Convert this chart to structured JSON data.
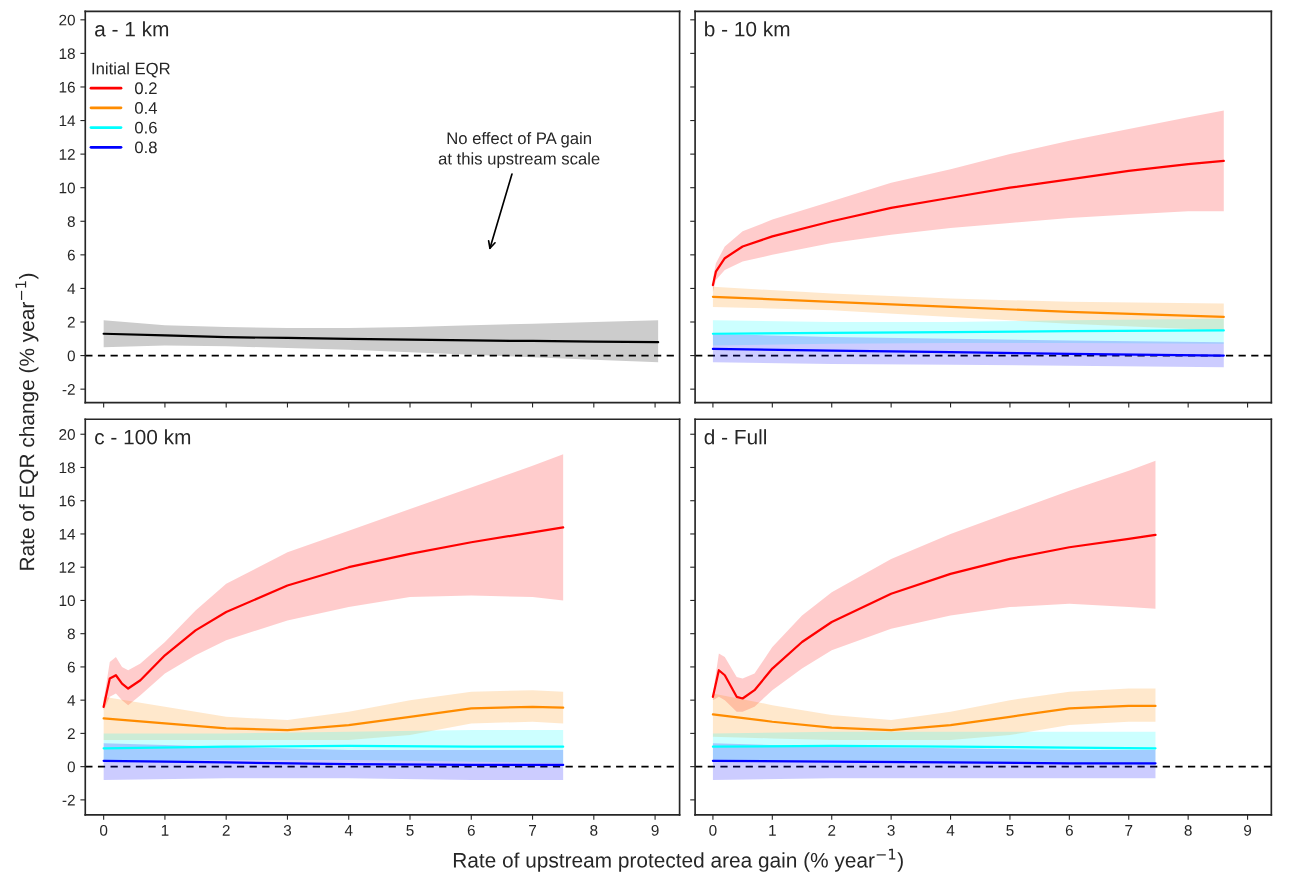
{
  "chart_data": [
    {
      "type": "line",
      "title": "a - 1 km",
      "ylabel": "Rate of EQR change (% year$^{−1}$)",
      "xlim": [
        -0.3,
        9.4
      ],
      "ylim": [
        -2.8,
        20.5
      ],
      "xticks": [
        0,
        1,
        2,
        3,
        4,
        5,
        6,
        7,
        8,
        9
      ],
      "yticks": [
        -2,
        0,
        2,
        4,
        6,
        8,
        10,
        12,
        14,
        16,
        18,
        20
      ],
      "tick_labels": "y",
      "annotations": [
        "No effect of PA gain\nat this upstream scale"
      ],
      "ref_lines": [
        {
          "axis": "y",
          "value": 0,
          "color": "#000000",
          "line_style": "dashed"
        }
      ],
      "series": [
        {
          "color": "#000000",
          "x": [
            0,
            1,
            2,
            3,
            4,
            5,
            6,
            7,
            8,
            9.05
          ],
          "values": [
            1.3,
            1.2,
            1.1,
            1.05,
            1.0,
            0.95,
            0.9,
            0.87,
            0.83,
            0.8
          ],
          "lower": [
            0.5,
            0.6,
            0.55,
            0.45,
            0.35,
            0.2,
            0.05,
            -0.1,
            -0.25,
            -0.4
          ],
          "upper": [
            2.1,
            1.8,
            1.7,
            1.65,
            1.65,
            1.7,
            1.8,
            1.9,
            2.0,
            2.1
          ]
        }
      ]
    },
    {
      "type": "line",
      "title": "b - 10 km",
      "legend_title": "Initial EQR",
      "legend": "left",
      "xlim": [
        -0.3,
        9.4
      ],
      "ylim": [
        -2.8,
        20.5
      ],
      "xticks": [
        0,
        1,
        2,
        3,
        4,
        5,
        6,
        7,
        8,
        9
      ],
      "yticks": [
        -2,
        0,
        2,
        4,
        6,
        8,
        10,
        12,
        14,
        16,
        18,
        20
      ],
      "tick_labels": false,
      "ref_lines": [
        {
          "axis": "y",
          "value": 0,
          "color": "#000000",
          "line_style": "dashed"
        }
      ],
      "series": [
        {
          "name": "0.2",
          "color": "#ff0000",
          "x": [
            0,
            0.05,
            0.2,
            0.5,
            1,
            2,
            3,
            4,
            5,
            6,
            7,
            8,
            8.6
          ],
          "values": [
            4.2,
            5.0,
            5.8,
            6.5,
            7.1,
            8.0,
            8.8,
            9.4,
            10.0,
            10.5,
            11.0,
            11.4,
            11.6
          ],
          "lower": [
            3.8,
            4.5,
            5.1,
            5.6,
            6.0,
            6.7,
            7.2,
            7.6,
            7.9,
            8.2,
            8.4,
            8.6,
            8.6
          ],
          "upper": [
            4.6,
            5.5,
            6.5,
            7.4,
            8.1,
            9.2,
            10.3,
            11.1,
            12.0,
            12.8,
            13.5,
            14.2,
            14.6
          ]
        },
        {
          "name": "0.4",
          "color": "#ff8c00",
          "x": [
            0,
            2,
            4,
            6,
            8.6
          ],
          "values": [
            3.5,
            3.2,
            2.9,
            2.6,
            2.3
          ],
          "lower": [
            2.9,
            2.7,
            2.3,
            1.9,
            1.5
          ],
          "upper": [
            4.1,
            3.7,
            3.4,
            3.2,
            3.1
          ]
        },
        {
          "name": "0.6",
          "color": "#00ffff",
          "x": [
            0,
            2,
            4,
            6,
            8.6
          ],
          "values": [
            1.3,
            1.35,
            1.4,
            1.45,
            1.5
          ],
          "lower": [
            0.6,
            0.7,
            0.75,
            0.75,
            0.7
          ],
          "upper": [
            2.1,
            2.0,
            2.0,
            2.1,
            2.2
          ]
        },
        {
          "name": "0.8",
          "color": "#0000ff",
          "x": [
            0,
            2,
            4,
            6,
            8.6
          ],
          "values": [
            0.4,
            0.3,
            0.2,
            0.1,
            0.0
          ],
          "lower": [
            -0.4,
            -0.5,
            -0.55,
            -0.6,
            -0.7
          ],
          "upper": [
            1.3,
            1.1,
            1.0,
            0.9,
            0.8
          ]
        }
      ]
    },
    {
      "type": "line",
      "title": "c - 100 km",
      "xlabel": "Rate of upstream protected area gain (% year$^{−1}$)",
      "xlim": [
        -0.3,
        9.4
      ],
      "ylim": [
        -2.9,
        20.9
      ],
      "xticks": [
        0,
        1,
        2,
        3,
        4,
        5,
        6,
        7,
        8,
        9
      ],
      "yticks": [
        -2,
        0,
        2,
        4,
        6,
        8,
        10,
        12,
        14,
        16,
        18,
        20
      ],
      "ref_lines": [
        {
          "axis": "y",
          "value": 0,
          "color": "#000000",
          "line_style": "dashed"
        }
      ],
      "series": [
        {
          "name": "0.2",
          "color": "#ff0000",
          "x": [
            0,
            0.1,
            0.2,
            0.3,
            0.4,
            0.6,
            1,
            1.5,
            2,
            3,
            4,
            5,
            6,
            7,
            7.5
          ],
          "values": [
            3.6,
            5.3,
            5.5,
            5.0,
            4.7,
            5.2,
            6.7,
            8.2,
            9.3,
            10.9,
            12.0,
            12.8,
            13.5,
            14.1,
            14.4
          ],
          "lower": [
            3.4,
            4.2,
            4.4,
            4.0,
            3.7,
            4.3,
            5.6,
            6.7,
            7.6,
            8.8,
            9.6,
            10.2,
            10.3,
            10.2,
            10.0
          ],
          "upper": [
            4.0,
            6.3,
            6.6,
            6.0,
            5.8,
            6.2,
            7.5,
            9.4,
            11.0,
            12.9,
            14.2,
            15.5,
            16.8,
            18.1,
            18.8
          ]
        },
        {
          "name": "0.4",
          "color": "#ff8c00",
          "x": [
            0,
            1,
            2,
            3,
            4,
            5,
            6,
            7,
            7.5
          ],
          "values": [
            2.9,
            2.6,
            2.3,
            2.2,
            2.5,
            3.0,
            3.5,
            3.6,
            3.55
          ],
          "lower": [
            1.6,
            1.6,
            1.6,
            1.6,
            1.6,
            1.9,
            2.6,
            2.7,
            2.6
          ],
          "upper": [
            4.2,
            3.6,
            3.0,
            2.8,
            3.3,
            4.0,
            4.5,
            4.6,
            4.5
          ]
        },
        {
          "name": "0.6",
          "color": "#00ffff",
          "x": [
            0,
            2,
            4,
            6,
            7.5
          ],
          "values": [
            1.1,
            1.2,
            1.25,
            1.2,
            1.2
          ],
          "lower": [
            0.3,
            0.4,
            0.4,
            0.3,
            0.2
          ],
          "upper": [
            2.0,
            2.0,
            2.1,
            2.2,
            2.2
          ]
        },
        {
          "name": "0.8",
          "color": "#0000ff",
          "x": [
            0,
            2,
            4,
            6,
            7.5
          ],
          "values": [
            0.35,
            0.25,
            0.15,
            0.1,
            0.1
          ],
          "lower": [
            -0.8,
            -0.7,
            -0.7,
            -0.8,
            -0.8
          ],
          "upper": [
            1.4,
            1.2,
            1.0,
            1.0,
            1.0
          ]
        }
      ]
    },
    {
      "type": "line",
      "title": "d - Full",
      "xlim": [
        -0.3,
        9.4
      ],
      "ylim": [
        -2.9,
        20.9
      ],
      "xticks": [
        0,
        1,
        2,
        3,
        4,
        5,
        6,
        7,
        8,
        9
      ],
      "yticks": [
        -2,
        0,
        2,
        4,
        6,
        8,
        10,
        12,
        14,
        16,
        18,
        20
      ],
      "tick_labels": "x",
      "ref_lines": [
        {
          "axis": "y",
          "value": 0,
          "color": "#000000",
          "line_style": "dashed"
        }
      ],
      "series": [
        {
          "name": "0.2",
          "color": "#ff0000",
          "x": [
            0,
            0.1,
            0.2,
            0.4,
            0.5,
            0.7,
            1,
            1.5,
            2,
            3,
            4,
            5,
            6,
            7,
            7.45
          ],
          "values": [
            4.2,
            5.8,
            5.5,
            4.2,
            4.1,
            4.6,
            5.9,
            7.5,
            8.7,
            10.4,
            11.6,
            12.5,
            13.2,
            13.7,
            13.95
          ],
          "lower": [
            4.0,
            4.2,
            4.0,
            3.3,
            3.3,
            3.6,
            4.6,
            5.9,
            7.0,
            8.3,
            9.1,
            9.6,
            9.8,
            9.6,
            9.5
          ],
          "upper": [
            4.4,
            6.8,
            6.6,
            5.4,
            5.3,
            5.6,
            7.2,
            9.1,
            10.5,
            12.5,
            14.0,
            15.3,
            16.6,
            17.8,
            18.4
          ]
        },
        {
          "name": "0.4",
          "color": "#ff8c00",
          "x": [
            0,
            1,
            2,
            3,
            4,
            5,
            6,
            7,
            7.45
          ],
          "values": [
            3.15,
            2.7,
            2.35,
            2.2,
            2.5,
            3.0,
            3.5,
            3.65,
            3.65
          ],
          "lower": [
            1.8,
            1.7,
            1.6,
            1.6,
            1.6,
            1.9,
            2.5,
            2.7,
            2.7
          ],
          "upper": [
            4.4,
            3.7,
            3.1,
            2.8,
            3.3,
            4.0,
            4.5,
            4.7,
            4.7
          ]
        },
        {
          "name": "0.6",
          "color": "#00ffff",
          "x": [
            0,
            2,
            4,
            6,
            7.45
          ],
          "values": [
            1.2,
            1.25,
            1.2,
            1.15,
            1.1
          ],
          "lower": [
            0.4,
            0.4,
            0.3,
            0.2,
            0.1
          ],
          "upper": [
            2.0,
            2.1,
            2.1,
            2.1,
            2.1
          ]
        },
        {
          "name": "0.8",
          "color": "#0000ff",
          "x": [
            0,
            2,
            4,
            6,
            7.45
          ],
          "values": [
            0.35,
            0.3,
            0.25,
            0.2,
            0.2
          ],
          "lower": [
            -0.8,
            -0.7,
            -0.7,
            -0.7,
            -0.7
          ],
          "upper": [
            1.4,
            1.2,
            1.1,
            1.0,
            1.0
          ]
        }
      ]
    }
  ]
}
